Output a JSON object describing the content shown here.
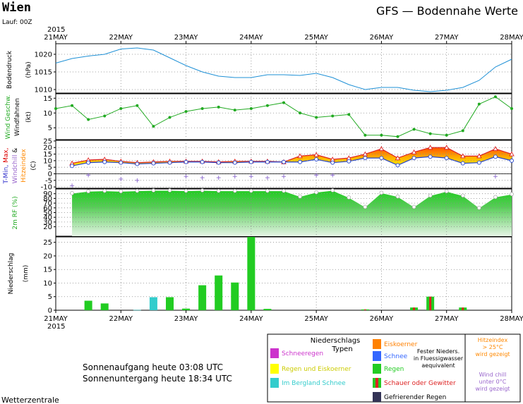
{
  "header": {
    "city": "Wien",
    "run": "Lauf: 00Z",
    "title": "GFS — Bodennahe Werte",
    "year_top": "2015",
    "year_bottom": "2015"
  },
  "footer": {
    "sunrise": "Sonnenaufgang heute 03:08 UTC",
    "sunset": "Sonnenuntergang heute 18:34 UTC",
    "source": "Wetterzentrale"
  },
  "legend": {
    "title_line1": "Niederschlags",
    "title_line2": "Typen",
    "items": [
      {
        "label": "Schneeregen",
        "color": "#cc33cc"
      },
      {
        "label": "Regen und Eiskoerner",
        "color": "#ffff00"
      },
      {
        "label": "Im Bergland Schnee",
        "color": "#33cccc"
      },
      {
        "label": "Eiskoerner",
        "color": "#ff8000"
      },
      {
        "label": "Schnee",
        "color": "#3366ff"
      },
      {
        "label": "Regen",
        "color": "#22cc22"
      },
      {
        "label": "Schauer oder Gewitter",
        "color": "#dd2222"
      },
      {
        "label": "Gefrierender Regen",
        "color": "#333355"
      }
    ],
    "fester_note": [
      "Fester Nieders.",
      "in Fluessigwasser",
      "aequivalent"
    ],
    "heat_note": [
      "Hitzeindex",
      "> 25°C",
      "wird gezeigt"
    ],
    "chill_note": [
      "Wind chill",
      "unter 0°C",
      "wird gezeigt"
    ]
  },
  "chart_data": {
    "type": "meteogram",
    "x_tick_labels": [
      "21MAY",
      "22MAY",
      "23MAY",
      "24MAY",
      "25MAY",
      "26MAY",
      "27MAY",
      "28MAY"
    ],
    "x_unit": "days since 21MAY 00Z",
    "panels": [
      {
        "id": "pressure",
        "ylabel": "Bodendruck",
        "unit": "(hPa)",
        "ylim": [
          1009,
          1023
        ],
        "yticks": [
          1010,
          1015,
          1020
        ],
        "series": [
          {
            "color": "#1e90d6",
            "x": [
              0,
              0.25,
              0.5,
              0.75,
              1,
              1.25,
              1.5,
              1.75,
              2,
              2.25,
              2.5,
              2.75,
              3,
              3.25,
              3.5,
              3.75,
              4,
              4.25,
              4.5,
              4.75,
              5,
              5.25,
              5.5,
              5.75,
              6,
              6.25,
              6.5,
              6.75,
              7
            ],
            "y": [
              1017.5,
              1018.8,
              1019.5,
              1020,
              1021.5,
              1021.8,
              1021.2,
              1019,
              1016.8,
              1015,
              1013.8,
              1013.4,
              1013.4,
              1014.2,
              1014.2,
              1014,
              1014.6,
              1013.4,
              1011.4,
              1010,
              1010.6,
              1010.6,
              1009.8,
              1009.4,
              1009.8,
              1010.6,
              1012.6,
              1016.4,
              1018.6
            ]
          }
        ]
      },
      {
        "id": "wind",
        "ylabel": "Wind Geschw. Windfahnen",
        "unit": "(kt)",
        "ylim": [
          1,
          16.5
        ],
        "yticks": [
          5,
          10,
          15
        ],
        "series": [
          {
            "color": "#22aa22",
            "x": [
              0,
              0.25,
              0.5,
              0.75,
              1,
              1.25,
              1.5,
              1.75,
              2,
              2.25,
              2.5,
              2.75,
              3,
              3.25,
              3.5,
              3.75,
              4,
              4.25,
              4.5,
              4.75,
              5,
              5.25,
              5.5,
              5.75,
              6,
              6.25,
              6.5,
              6.75,
              7
            ],
            "y": [
              11.5,
              12.5,
              7.8,
              9,
              11.5,
              12.5,
              5.5,
              8.5,
              10.5,
              11.5,
              12,
              11,
              11.5,
              12.5,
              13.5,
              10,
              8.5,
              9,
              9.5,
              2.5,
              2.5,
              2,
              4.5,
              3,
              2.5,
              4,
              13,
              15.5,
              11.5
            ]
          }
        ]
      },
      {
        "id": "temperature",
        "ylabel": "T-Min, Max, Windchill & Hitzeindex",
        "unit": "(C)",
        "ylim": [
          -11,
          25.5
        ],
        "yticks": [
          -10,
          -5,
          0,
          5,
          10,
          15,
          20,
          25
        ],
        "x": [
          0.25,
          0.5,
          0.75,
          1,
          1.25,
          1.5,
          1.75,
          2,
          2.25,
          2.5,
          2.75,
          3,
          3.25,
          3.5,
          3.75,
          4,
          4.25,
          4.5,
          4.75,
          5,
          5.25,
          5.5,
          5.75,
          6,
          6.25,
          6.5,
          6.75,
          7
        ],
        "tmax": [
          8,
          10.5,
          11,
          9.5,
          8.5,
          9,
          9.5,
          9.5,
          9.5,
          9,
          9.5,
          9.5,
          9.5,
          9,
          13.5,
          14.5,
          11,
          12,
          15,
          19,
          12,
          16.5,
          20,
          20,
          13.5,
          13.5,
          19,
          15
        ],
        "tmin": [
          6,
          8.5,
          9,
          8.5,
          7.5,
          8,
          8.5,
          9,
          9,
          8.5,
          8.5,
          9,
          9,
          9,
          9,
          11,
          8.5,
          9.5,
          12,
          12,
          6.5,
          12,
          13,
          12,
          8,
          8.5,
          13,
          10
        ],
        "dew_x": [
          0.25,
          0.5,
          1,
          1.25,
          2,
          2.25,
          2.5,
          2.75,
          3,
          3.25,
          3.5,
          4,
          4.25,
          6.75
        ],
        "dew_y": [
          -9,
          -1,
          -4,
          -5,
          -2,
          -3,
          -3,
          -2,
          -2,
          -3,
          -2,
          -1,
          -1,
          -2
        ]
      },
      {
        "id": "humidity",
        "ylabel": "2m RF (%)",
        "ylim": [
          0,
          100
        ],
        "yticks": [
          20,
          30,
          40,
          50,
          60,
          70,
          80,
          90
        ],
        "x": [
          0.25,
          0.5,
          0.75,
          1,
          1.25,
          1.5,
          1.75,
          2,
          2.25,
          2.5,
          2.75,
          3,
          3.25,
          3.5,
          3.75,
          4,
          4.25,
          4.5,
          4.75,
          5,
          5.25,
          5.5,
          5.75,
          6,
          6.25,
          6.5,
          6.75,
          7
        ],
        "y": [
          91,
          95,
          96,
          95,
          96,
          97,
          97,
          96,
          97,
          96,
          96,
          96,
          96,
          96,
          84,
          93,
          97,
          82,
          62,
          92,
          84,
          62,
          86,
          95,
          86,
          60,
          83,
          89
        ]
      },
      {
        "id": "precipitation",
        "ylabel": "Niederschlag",
        "unit": "(mm)",
        "ylim": [
          0,
          27
        ],
        "yticks": [
          0,
          5,
          10,
          15,
          20,
          25
        ],
        "bars": [
          {
            "x": 0.5,
            "v": 3.5,
            "type": "Regen"
          },
          {
            "x": 0.75,
            "v": 2.5,
            "type": "Regen"
          },
          {
            "x": 1.25,
            "v": 0.1,
            "type": "Im Bergland Schnee"
          },
          {
            "x": 1.5,
            "v": 4.8,
            "type": "Im Bergland Schnee"
          },
          {
            "x": 1.75,
            "v": 4.8,
            "type": "Regen"
          },
          {
            "x": 2,
            "v": 0.6,
            "type": "Regen"
          },
          {
            "x": 2.25,
            "v": 9.2,
            "type": "Regen"
          },
          {
            "x": 2.5,
            "v": 12.8,
            "type": "Regen"
          },
          {
            "x": 2.75,
            "v": 10.2,
            "type": "Regen"
          },
          {
            "x": 3,
            "v": 27,
            "type": "Regen"
          },
          {
            "x": 3.25,
            "v": 0.5,
            "type": "Regen"
          },
          {
            "x": 4.75,
            "v": 0.3,
            "type": "Schauer oder Gewitter"
          },
          {
            "x": 5.5,
            "v": 1,
            "type": "Schauer oder Gewitter"
          },
          {
            "x": 5.75,
            "v": 5,
            "type": "Schauer oder Gewitter"
          },
          {
            "x": 6.25,
            "v": 1,
            "type": "Schauer oder Gewitter"
          }
        ]
      }
    ]
  }
}
